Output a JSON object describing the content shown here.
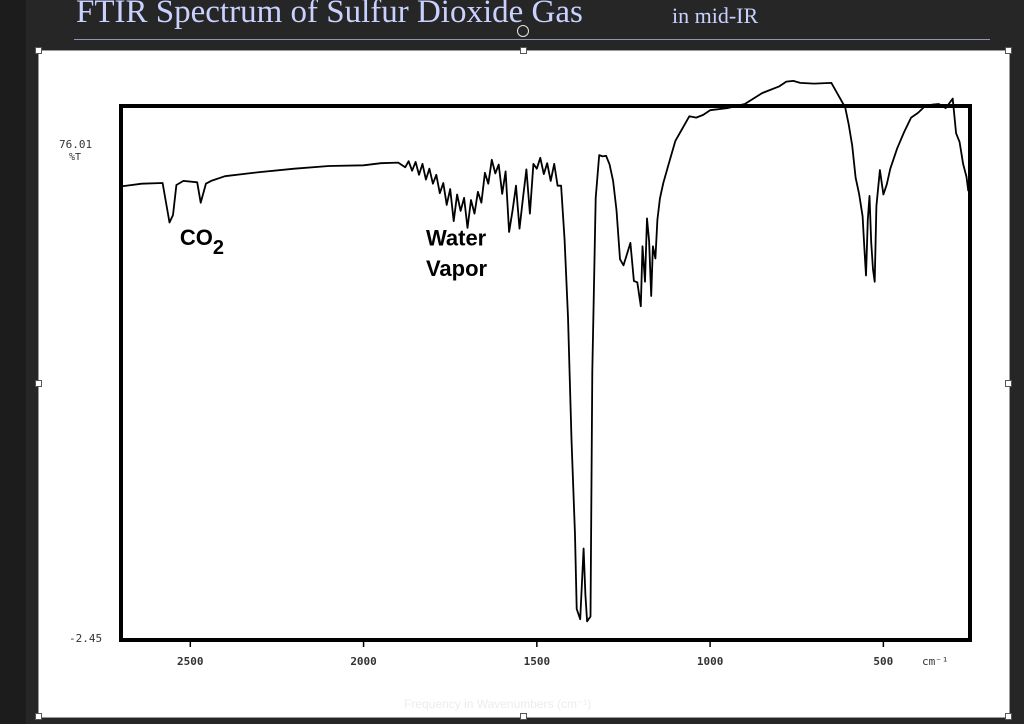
{
  "slide": {
    "title": "FTIR Spectrum of Sulfur Dioxide Gas",
    "subtitle": "in mid-IR",
    "caption": "Frequency in Wavenumbers (cm⁻¹)"
  },
  "colors": {
    "background": "#262626",
    "title": "#c9d2ff",
    "plot_line": "#000000",
    "frame": "#ffffff"
  },
  "chart_data": {
    "type": "line",
    "title": "",
    "xlabel": "cm⁻¹",
    "ylabel": "%T",
    "xlim": [
      2700,
      250
    ],
    "ylim": [
      -2.45,
      76.01
    ],
    "y_tick_labels": [
      "76.01",
      "-2.45"
    ],
    "y_unit_label": "%T",
    "x_ticks": [
      2500,
      2000,
      1500,
      1000,
      500
    ],
    "x_unit_label": "cm⁻¹",
    "grid": false,
    "legend": "none",
    "annotations": [
      {
        "text": "CO",
        "subscript": "2",
        "x": 2530,
        "y": 55.6
      },
      {
        "text": "Water",
        "x": 1820,
        "y": 55.5
      },
      {
        "text": "Vapor",
        "x": 1820,
        "y": 51.0
      }
    ],
    "series": [
      {
        "x": [
          2700,
          2640,
          2580,
          2560,
          2550,
          2540,
          2520,
          2480,
          2470,
          2455,
          2440,
          2400,
          2300,
          2200,
          2100,
          2000,
          1950,
          1900,
          1880,
          1870,
          1860,
          1850,
          1840,
          1830,
          1820,
          1810,
          1800,
          1790,
          1780,
          1770,
          1760,
          1750,
          1740,
          1730,
          1720,
          1710,
          1700,
          1690,
          1680,
          1670,
          1660,
          1650,
          1640,
          1630,
          1620,
          1610,
          1600,
          1590,
          1580,
          1570,
          1560,
          1550,
          1540,
          1530,
          1520,
          1510,
          1500,
          1490,
          1480,
          1470,
          1460,
          1450,
          1440,
          1430,
          1420,
          1410,
          1400,
          1390,
          1385,
          1375,
          1365,
          1360,
          1355,
          1345,
          1340,
          1330,
          1320,
          1310,
          1300,
          1290,
          1280,
          1270,
          1260,
          1250,
          1240,
          1230,
          1220,
          1210,
          1200,
          1195,
          1188,
          1182,
          1176,
          1170,
          1165,
          1158,
          1152,
          1145,
          1135,
          1120,
          1100,
          1080,
          1060,
          1040,
          1020,
          1000,
          950,
          900,
          850,
          800,
          780,
          760,
          740,
          700,
          650,
          610,
          600,
          590,
          580,
          570,
          560,
          555,
          550,
          545,
          540,
          535,
          530,
          525,
          520,
          510,
          500,
          490,
          480,
          460,
          440,
          420,
          400,
          380,
          360,
          340,
          320,
          300,
          290,
          280,
          270,
          260,
          255
        ],
        "y": [
          64.2,
          64.6,
          64.7,
          58.9,
          60.0,
          64.4,
          65.0,
          64.8,
          61.8,
          64.6,
          65.0,
          65.7,
          66.3,
          66.8,
          67.2,
          67.3,
          67.6,
          67.7,
          67.0,
          67.9,
          66.5,
          67.8,
          65.9,
          67.5,
          65.2,
          66.8,
          64.6,
          65.9,
          63.2,
          64.7,
          61.5,
          63.8,
          59.1,
          63.0,
          60.6,
          62.5,
          58.1,
          62.2,
          60.2,
          63.4,
          61.8,
          66.2,
          64.6,
          68.1,
          66.1,
          67.4,
          63.1,
          66.4,
          57.5,
          60.7,
          64.3,
          58.0,
          62.5,
          66.7,
          60.2,
          67.5,
          66.8,
          68.4,
          66.0,
          67.6,
          65.0,
          67.5,
          64.3,
          64.3,
          56.3,
          45.0,
          27.0,
          13.0,
          2.1,
          0.6,
          11.0,
          4.2,
          0.3,
          1.0,
          37.0,
          62.5,
          68.8,
          68.6,
          68.7,
          67.4,
          65.0,
          60.7,
          53.5,
          52.6,
          54.2,
          55.9,
          50.3,
          50.1,
          46.6,
          55.4,
          50.2,
          59.5,
          56.2,
          48.1,
          55.4,
          53.6,
          59.3,
          62.4,
          64.7,
          67.4,
          70.9,
          72.7,
          74.5,
          74.3,
          74.7,
          75.4,
          75.7,
          76.3,
          77.9,
          78.9,
          79.6,
          79.7,
          79.4,
          79.3,
          79.4,
          75.8,
          73.3,
          70.2,
          65.5,
          63.1,
          59.8,
          55.3,
          51.1,
          59.3,
          62.8,
          56.0,
          52.0,
          50.2,
          61.3,
          66.6,
          63.0,
          64.5,
          66.8,
          69.8,
          72.2,
          74.3,
          75.0,
          76.0,
          76.2,
          76.3,
          75.7,
          77.1,
          72.0,
          70.7,
          67.5,
          65.6,
          63.5
        ]
      }
    ]
  }
}
